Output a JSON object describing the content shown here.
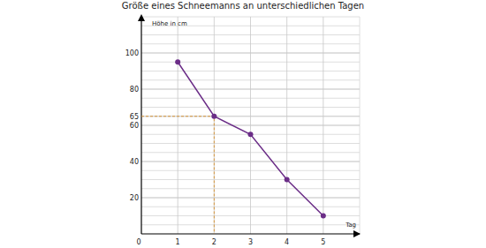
{
  "chart_data": {
    "type": "line",
    "title": "Größe eines Schneemanns an unterschiedlichen Tagen",
    "x_label": "Tag",
    "y_label": "Höhe in cm",
    "x": [
      1,
      2,
      3,
      4,
      5
    ],
    "values": [
      95,
      65,
      55,
      30,
      10
    ],
    "color": "#6b2d87",
    "marker": "circle",
    "xlim": [
      0,
      6
    ],
    "ylim": [
      0,
      120
    ],
    "xticks": [
      0,
      1,
      2,
      3,
      4,
      5
    ],
    "yticks": [
      20,
      40,
      60,
      65,
      80,
      100
    ],
    "grid": true
  }
}
